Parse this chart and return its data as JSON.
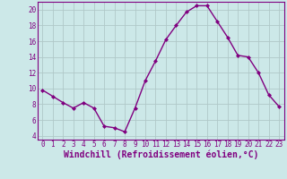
{
  "x": [
    0,
    1,
    2,
    3,
    4,
    5,
    6,
    7,
    8,
    9,
    10,
    11,
    12,
    13,
    14,
    15,
    16,
    17,
    18,
    19,
    20,
    21,
    22,
    23
  ],
  "y": [
    9.8,
    9.0,
    8.2,
    7.5,
    8.2,
    7.5,
    5.2,
    5.0,
    4.5,
    7.5,
    11.0,
    13.5,
    16.2,
    18.0,
    19.7,
    20.5,
    20.5,
    18.5,
    16.5,
    14.2,
    14.0,
    12.0,
    9.2,
    7.7
  ],
  "line_color": "#800080",
  "marker": "D",
  "marker_size": 2,
  "linewidth": 1.0,
  "xlabel": "Windchill (Refroidissement éolien,°C)",
  "xlabel_fontsize": 7,
  "xlim": [
    -0.5,
    23.5
  ],
  "ylim": [
    3.5,
    21.0
  ],
  "yticks": [
    4,
    6,
    8,
    10,
    12,
    14,
    16,
    18,
    20
  ],
  "xticks": [
    0,
    1,
    2,
    3,
    4,
    5,
    6,
    7,
    8,
    9,
    10,
    11,
    12,
    13,
    14,
    15,
    16,
    17,
    18,
    19,
    20,
    21,
    22,
    23
  ],
  "background_color": "#cce8e8",
  "grid_color": "#b0c8c8",
  "tick_fontsize": 5.5,
  "spine_color": "#800080"
}
